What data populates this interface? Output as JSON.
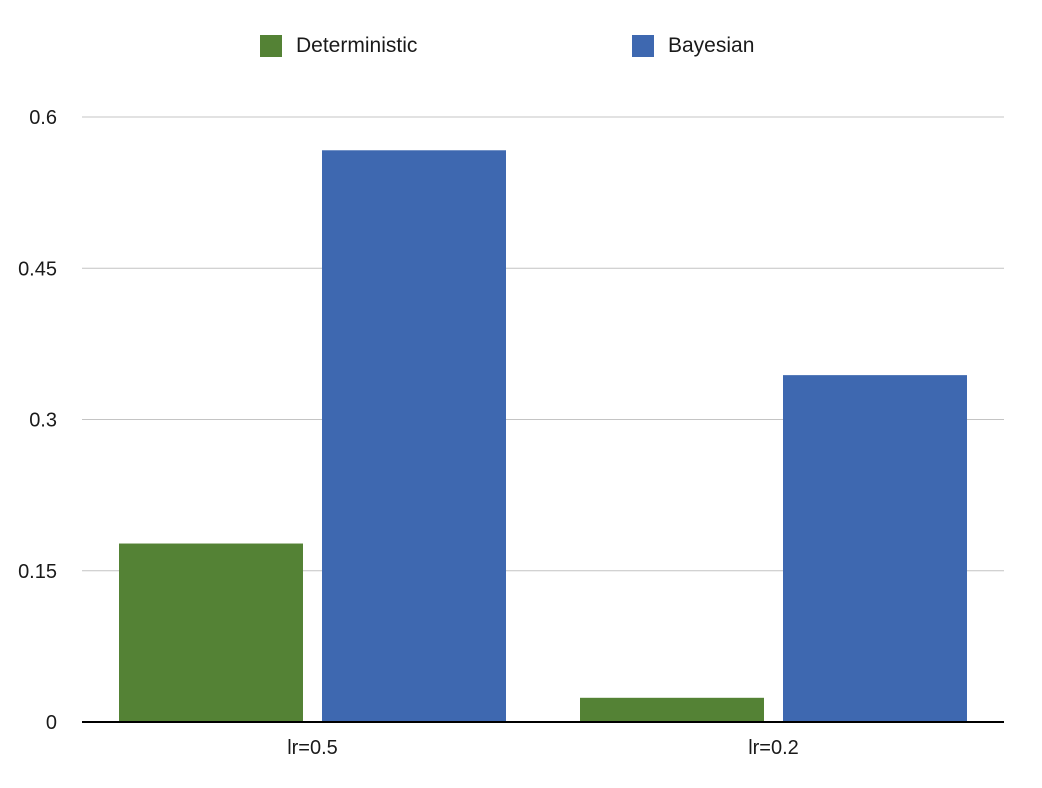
{
  "chart_data": {
    "type": "bar",
    "categories": [
      "lr=0.5",
      "lr=0.2"
    ],
    "series": [
      {
        "name": "Deterministic",
        "values": [
          0.177,
          0.024
        ]
      },
      {
        "name": "Bayesian",
        "values": [
          0.567,
          0.344
        ]
      }
    ],
    "ylim": [
      0,
      0.6
    ],
    "yticks": [
      0,
      0.15,
      0.3,
      0.45,
      0.6
    ],
    "ytick_labels": [
      "0",
      "0.15",
      "0.3",
      "0.45",
      "0.6"
    ],
    "grid": true,
    "legend_position": "top-center",
    "colors": [
      "#548235",
      "#3e68b0"
    ],
    "title": "",
    "xlabel": "",
    "ylabel": ""
  }
}
